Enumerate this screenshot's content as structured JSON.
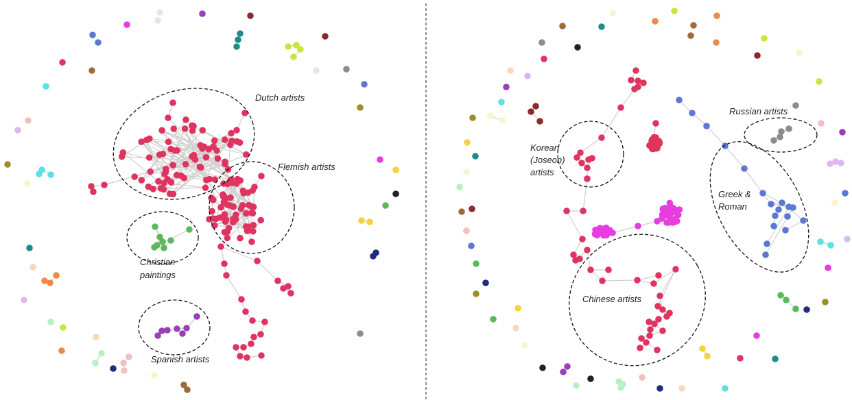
{
  "panels": [
    {
      "id": "left",
      "clusters": [
        {
          "label_lines": [
            "Dutch artists"
          ]
        },
        {
          "label_lines": [
            "Flemish artists"
          ]
        },
        {
          "label_lines": [
            "Christian",
            "paintings"
          ]
        },
        {
          "label_lines": [
            "Spanish artists"
          ]
        }
      ]
    },
    {
      "id": "right",
      "clusters": [
        {
          "label_lines": [
            "Russian artists"
          ]
        },
        {
          "label_lines": [
            "Korean",
            "(Joseon)",
            "artists"
          ]
        },
        {
          "label_lines": [
            "Greek &",
            "Roman"
          ]
        },
        {
          "label_lines": [
            "Chinese artists"
          ]
        }
      ]
    }
  ],
  "colors": {
    "crimson": "#e03460",
    "magenta": "#e63ce0",
    "green": "#5cb85c",
    "purple": "#9b3fb8",
    "blue": "#5b78d4",
    "grey": "#8c8c8c",
    "teal": "#1f8c8c",
    "lime": "#c6e83c",
    "orange": "#ee8a45",
    "brown": "#a06a3a",
    "maroon": "#8b2a2a",
    "olive": "#9a8f2a",
    "navy": "#1f2a80",
    "yellow": "#f4d43a",
    "cyan": "#5ce0e6",
    "pink": "#f2c0c0",
    "lavender": "#dcb8f0",
    "cream": "#fbf3cc",
    "mint": "#b8f0c4",
    "peach": "#f8d8b8",
    "black": "#222222",
    "lightgrey": "#e6e6e6"
  }
}
